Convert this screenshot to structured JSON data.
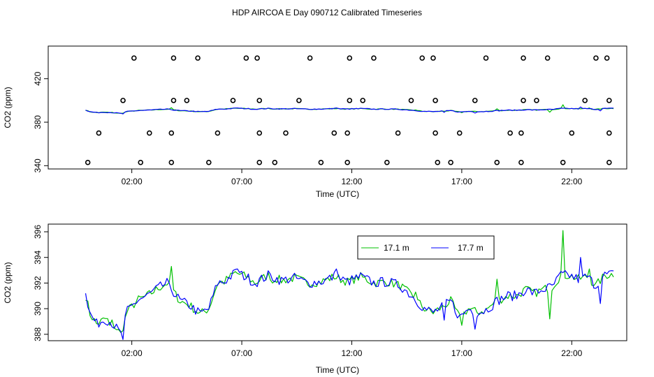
{
  "title": "HDP AIRCOA E  Day 090712  Calibrated Timeseries",
  "chart_data": [
    {
      "type": "scatter+line",
      "xlabel": "Time (UTC)",
      "ylabel": "CO2 (ppm)",
      "xlim": [
        -1.8,
        24.5
      ],
      "ylim": [
        337,
        450
      ],
      "x_ticks": [
        2,
        7,
        12,
        17,
        22
      ],
      "x_tick_labels": [
        "02:00",
        "07:00",
        "12:00",
        "17:00",
        "22:00"
      ],
      "y_ticks": [
        340,
        380,
        420
      ],
      "y_tick_labels": [
        "340",
        "380",
        "420"
      ],
      "legend": "none",
      "calibration_points": {
        "level_439": [
          2.1,
          3.9,
          5.0,
          7.2,
          7.7,
          10.1,
          11.9,
          13.0,
          15.2,
          15.7,
          18.1,
          19.8,
          20.9,
          23.1,
          23.6
        ],
        "level_400": [
          1.6,
          3.9,
          4.5,
          6.6,
          7.8,
          9.6,
          11.9,
          12.5,
          14.7,
          15.8,
          17.6,
          19.8,
          20.4,
          22.6,
          23.7
        ],
        "level_370": [
          0.5,
          2.8,
          3.8,
          5.9,
          7.8,
          9.0,
          11.2,
          11.8,
          14.1,
          15.8,
          16.9,
          19.2,
          19.7,
          22.0,
          23.7
        ],
        "level_343": [
          0.0,
          2.4,
          3.8,
          5.5,
          7.8,
          8.5,
          10.6,
          11.8,
          13.6,
          15.9,
          16.5,
          18.6,
          19.7,
          21.6,
          23.7
        ]
      },
      "series": [
        {
          "name": "17.1 m",
          "color": "#00c000"
        },
        {
          "name": "17.7 m",
          "color": "#0000ff"
        }
      ]
    },
    {
      "type": "line",
      "xlabel": "Time (UTC)",
      "ylabel": "CO2 (ppm)",
      "xlim": [
        -1.8,
        24.5
      ],
      "ylim": [
        387.5,
        396.6
      ],
      "x_ticks": [
        2,
        7,
        12,
        17,
        22
      ],
      "x_tick_labels": [
        "02:00",
        "07:00",
        "12:00",
        "17:00",
        "22:00"
      ],
      "y_ticks": [
        388,
        390,
        392,
        394,
        396
      ],
      "y_tick_labels": [
        "388",
        "390",
        "392",
        "394",
        "396"
      ],
      "legend": "top-right",
      "anchors": [
        [
          -0.1,
          391.0
        ],
        [
          0.1,
          389.6
        ],
        [
          0.4,
          388.8
        ],
        [
          0.8,
          389.2
        ],
        [
          1.1,
          388.9
        ],
        [
          1.5,
          388.0
        ],
        [
          1.8,
          389.8
        ],
        [
          2.3,
          390.7
        ],
        [
          2.7,
          391.0
        ],
        [
          3.2,
          391.6
        ],
        [
          3.6,
          392.0
        ],
        [
          4.2,
          390.6
        ],
        [
          4.6,
          390.3
        ],
        [
          5.1,
          389.6
        ],
        [
          5.5,
          390.0
        ],
        [
          5.9,
          392.0
        ],
        [
          6.2,
          392.1
        ],
        [
          6.7,
          392.8
        ],
        [
          7.2,
          392.5
        ],
        [
          7.6,
          392.0
        ],
        [
          8.2,
          392.6
        ],
        [
          8.8,
          392.2
        ],
        [
          9.4,
          392.4
        ],
        [
          10.0,
          392.0
        ],
        [
          10.6,
          392.1
        ],
        [
          11.2,
          392.5
        ],
        [
          11.8,
          392.1
        ],
        [
          12.4,
          392.5
        ],
        [
          13.0,
          392.0
        ],
        [
          13.6,
          392.1
        ],
        [
          14.2,
          391.8
        ],
        [
          14.8,
          390.9
        ],
        [
          15.3,
          390.0
        ],
        [
          15.7,
          389.7
        ],
        [
          16.1,
          390.1
        ],
        [
          16.5,
          390.6
        ],
        [
          16.9,
          389.3
        ],
        [
          17.3,
          390.0
        ],
        [
          17.7,
          389.7
        ],
        [
          18.1,
          389.9
        ],
        [
          18.6,
          390.6
        ],
        [
          19.1,
          391.0
        ],
        [
          19.5,
          391.0
        ],
        [
          19.9,
          391.5
        ],
        [
          20.3,
          391.2
        ],
        [
          20.7,
          391.5
        ],
        [
          21.1,
          391.7
        ],
        [
          21.5,
          392.6
        ],
        [
          21.9,
          392.6
        ],
        [
          22.3,
          392.3
        ],
        [
          22.7,
          392.5
        ],
        [
          23.1,
          391.8
        ],
        [
          23.5,
          392.6
        ],
        [
          23.9,
          392.7
        ]
      ],
      "series": [
        {
          "name": "17.1 m",
          "color": "#00c000",
          "spikes": [
            [
              1.0,
              388.7
            ],
            [
              3.8,
              393.3
            ],
            [
              8.4,
              392.0
            ],
            [
              14.9,
              391.3
            ],
            [
              17.0,
              388.7
            ],
            [
              18.6,
              392.3
            ],
            [
              21.0,
              389.2
            ],
            [
              21.6,
              396.1
            ],
            [
              22.8,
              393.1
            ]
          ]
        },
        {
          "name": "17.7 m",
          "color": "#0000ff",
          "spikes": [
            [
              -0.1,
              391.2
            ],
            [
              1.6,
              387.6
            ],
            [
              3.7,
              392.0
            ],
            [
              6.8,
              393.1
            ],
            [
              11.3,
              393.1
            ],
            [
              16.2,
              389.1
            ],
            [
              17.6,
              388.4
            ],
            [
              21.5,
              392.9
            ],
            [
              22.4,
              394.0
            ],
            [
              23.3,
              390.4
            ]
          ]
        }
      ]
    }
  ]
}
